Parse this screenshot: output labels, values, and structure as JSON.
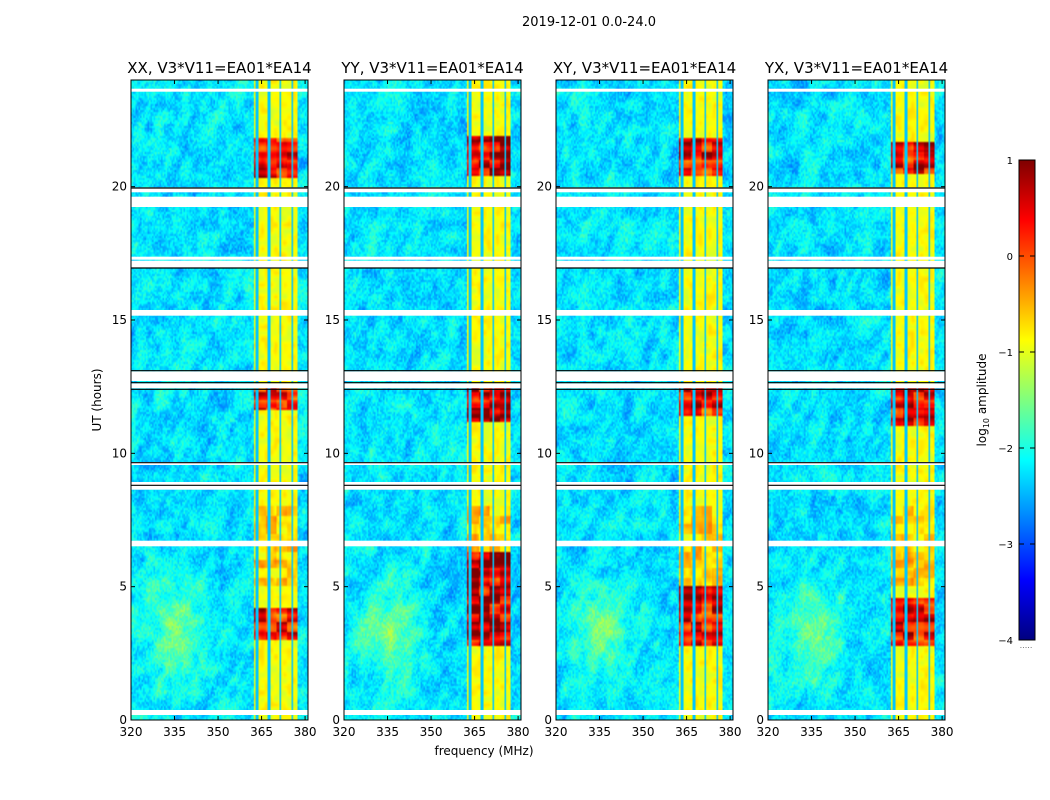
{
  "chart_data": {
    "type": "heatmap",
    "suptitle": "2019-12-01 0.0-24.0",
    "xlabel": "frequency (MHz)",
    "ylabel": "UT (hours)",
    "xlim": [
      320,
      381
    ],
    "ylim": [
      0,
      24
    ],
    "xticks": [
      "320",
      "335",
      "350",
      "365",
      "380"
    ],
    "yticks": [
      "0",
      "5",
      "10",
      "15",
      "20"
    ],
    "panels": [
      {
        "title": "XX, V3*V11=EA01*EA14",
        "hot_intensity": 0.65,
        "hot_bursts": [
          [
            3.0,
            4.2
          ],
          [
            11.6,
            12.5
          ],
          [
            20.3,
            21.8
          ]
        ]
      },
      {
        "title": "YY, V3*V11=EA01*EA14",
        "hot_intensity": 0.85,
        "hot_bursts": [
          [
            2.8,
            6.3
          ],
          [
            11.2,
            12.5
          ],
          [
            20.4,
            21.9
          ]
        ]
      },
      {
        "title": "XY, V3*V11=EA01*EA14",
        "hot_intensity": 0.7,
        "hot_bursts": [
          [
            2.8,
            5.0
          ],
          [
            11.4,
            12.5
          ],
          [
            20.4,
            21.8
          ]
        ]
      },
      {
        "title": "YX, V3*V11=EA01*EA14",
        "hot_intensity": 0.72,
        "hot_bursts": [
          [
            2.8,
            4.6
          ],
          [
            11.0,
            12.5
          ],
          [
            20.5,
            21.7
          ]
        ]
      }
    ],
    "rfi_band_mhz": [
      362.5,
      377.5
    ],
    "rfi_channels_mhz": [
      363.5,
      367.5,
      371.5,
      375.5
    ],
    "flagged_rows_hours": [
      0.3,
      6.55,
      6.65,
      8.75,
      8.85,
      9.6,
      12.55,
      12.75,
      12.85,
      13.0,
      15.2,
      15.3,
      17.05,
      17.15,
      17.3,
      19.35,
      19.45,
      19.55,
      19.9,
      23.6
    ],
    "colorbar": {
      "label": "log10 amplitude",
      "vmin": -4,
      "vmax": 1,
      "ticks": [
        "1",
        "0",
        "−1",
        "−2",
        "−3",
        "−4"
      ],
      "colors": [
        "#00007f",
        "#0000ff",
        "#007fff",
        "#00ffff",
        "#7fff7f",
        "#ffff00",
        "#ff7f00",
        "#ff0000",
        "#7f0000"
      ]
    }
  }
}
